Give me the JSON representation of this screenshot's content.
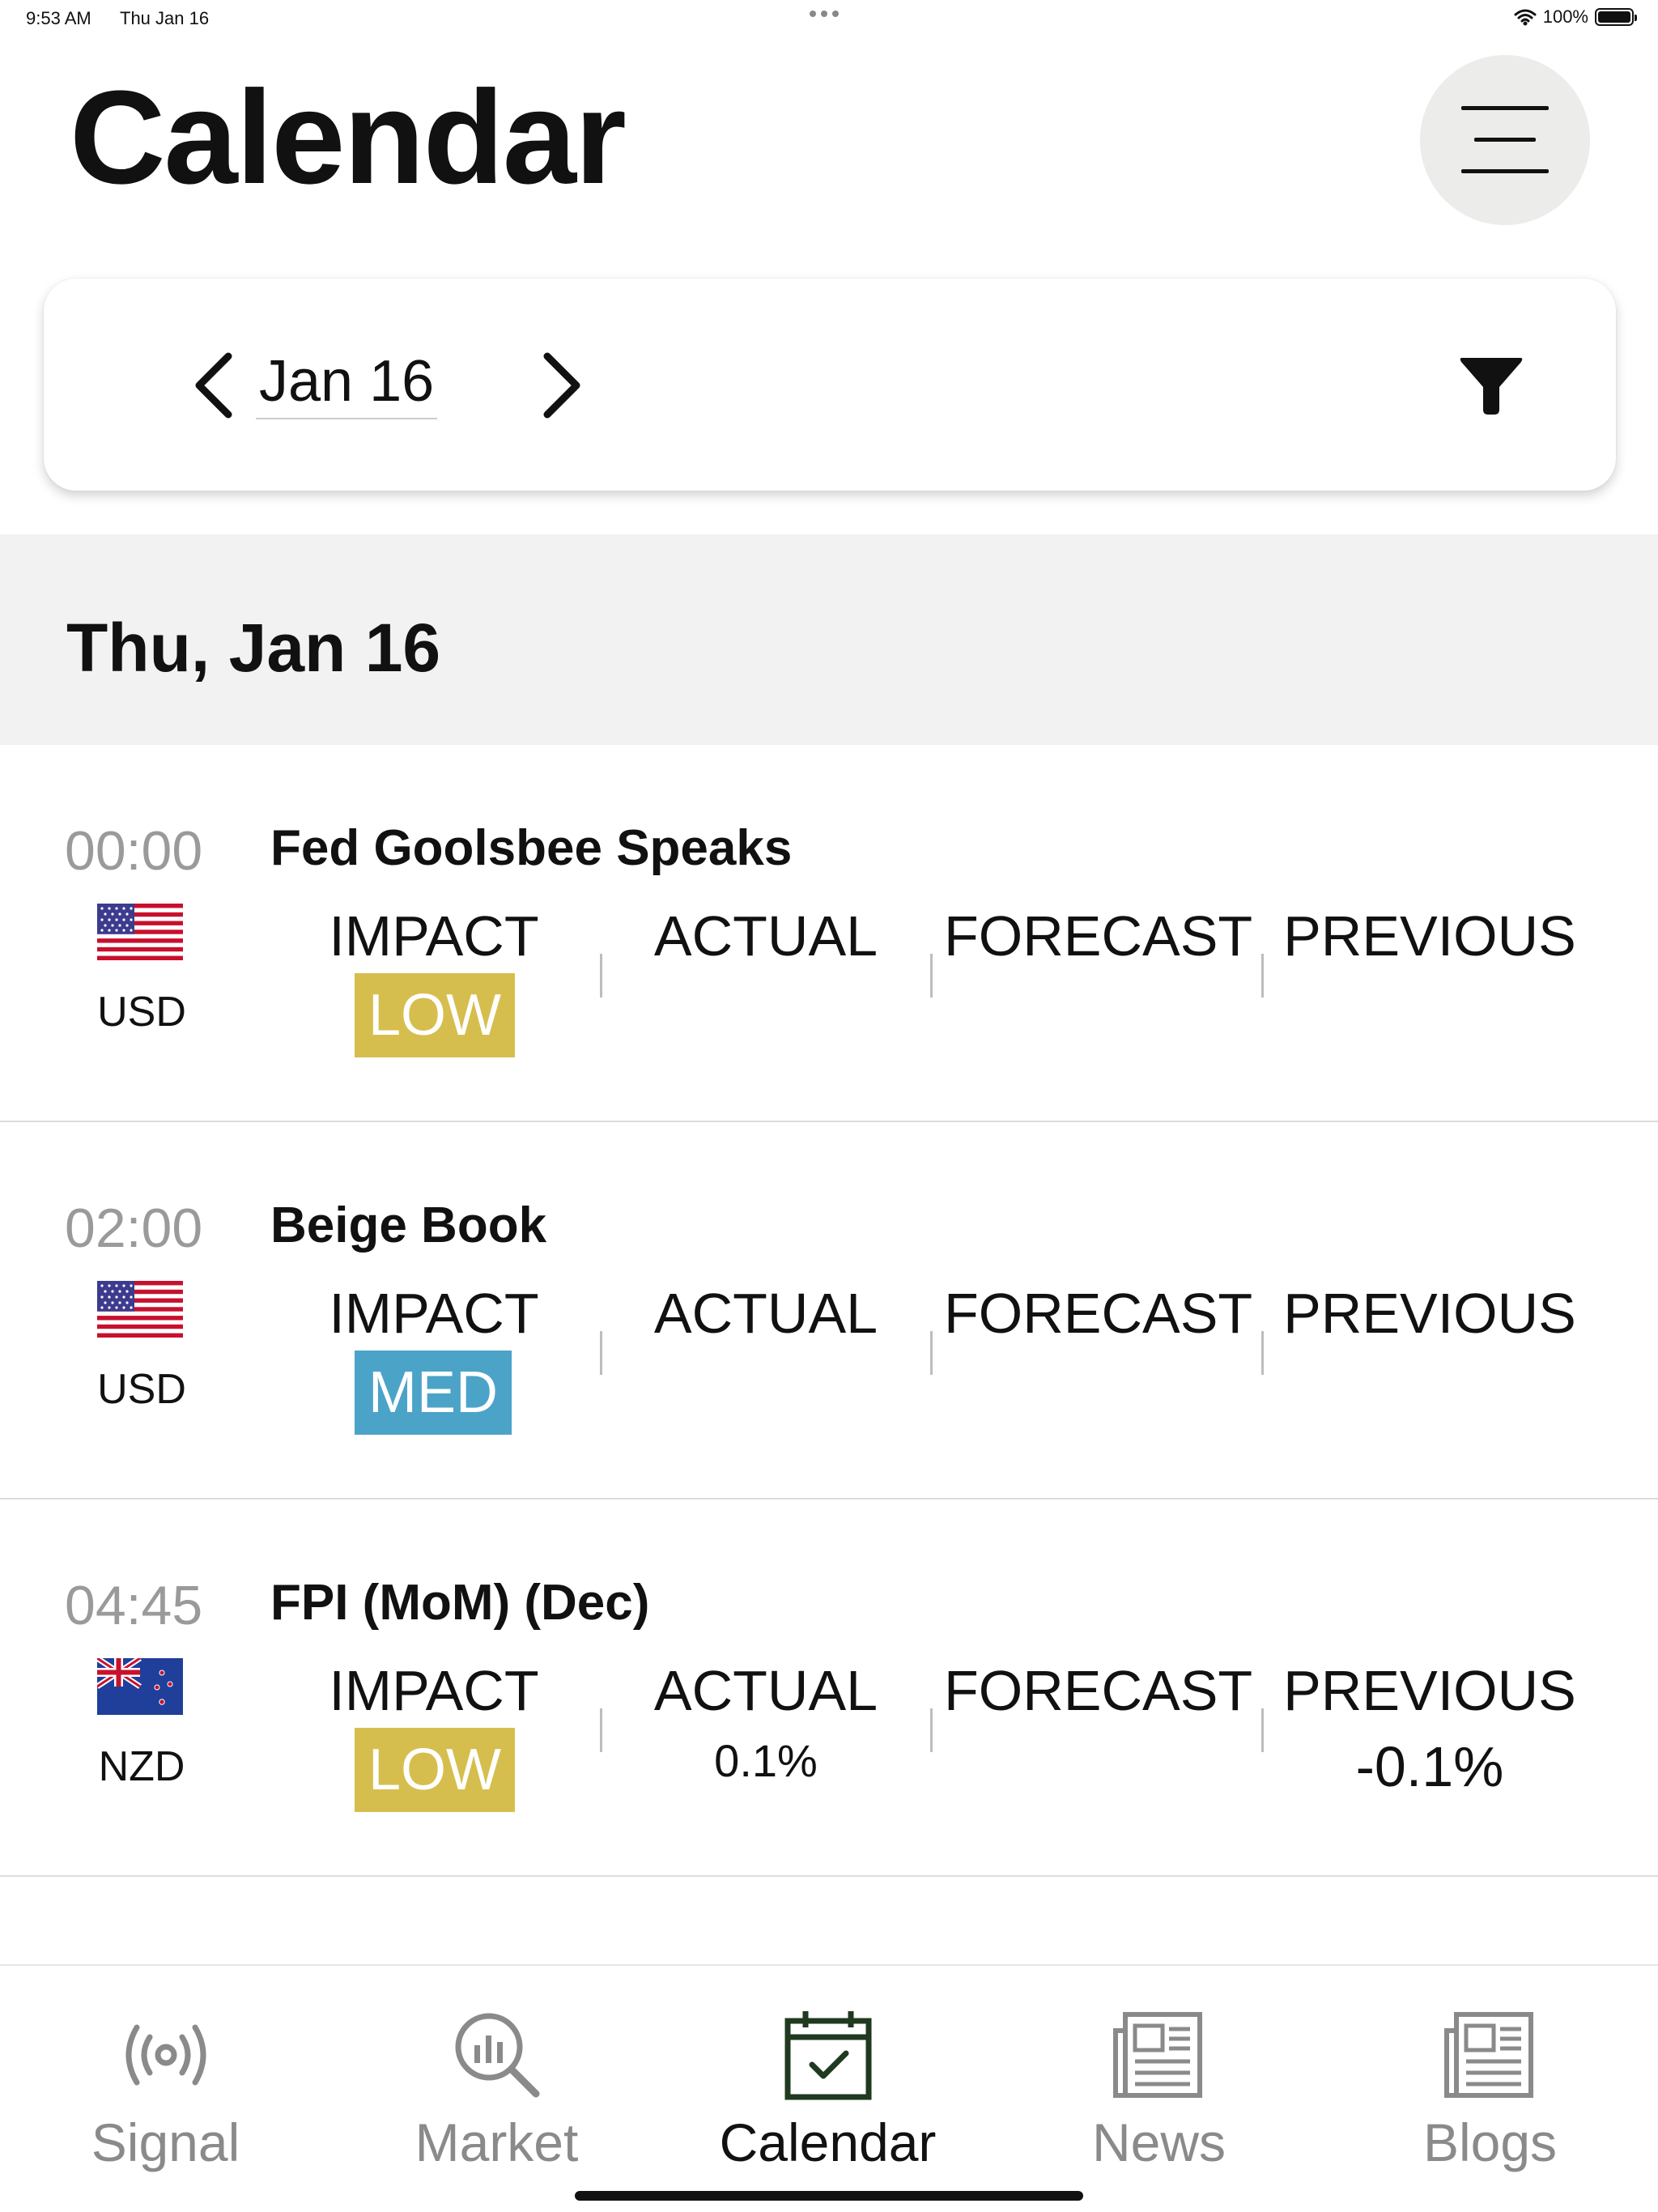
{
  "status_bar": {
    "time": "9:53 AM",
    "date": "Thu Jan 16",
    "battery": "100%"
  },
  "header": {
    "title": "Calendar",
    "menu_icon": "hamburger-menu-icon"
  },
  "date_selector": {
    "prev_icon": "chevron-left-icon",
    "date": "Jan 16",
    "next_icon": "chevron-right-icon",
    "filter_icon": "filter-funnel-icon"
  },
  "day": {
    "title": "Thu, Jan 16"
  },
  "columns": {
    "impact": "IMPACT",
    "actual": "ACTUAL",
    "forecast": "FORECAST",
    "previous": "PREVIOUS"
  },
  "events": [
    {
      "time": "00:00",
      "title": "Fed Goolsbee Speaks",
      "flag": "us-flag-icon",
      "currency": "USD",
      "impact": "LOW",
      "impact_color": "#d6be4e",
      "actual": "",
      "forecast": "",
      "previous": ""
    },
    {
      "time": "02:00",
      "title": "Beige Book",
      "flag": "us-flag-icon",
      "currency": "USD",
      "impact": "MED",
      "impact_color": "#4ca3c8",
      "actual": "",
      "forecast": "",
      "previous": ""
    },
    {
      "time": "04:45",
      "title": "FPI (MoM) (Dec)",
      "flag": "nz-flag-icon",
      "currency": "NZD",
      "impact": "LOW",
      "impact_color": "#d6be4e",
      "actual": "0.1%",
      "forecast": "",
      "previous": "-0.1%"
    }
  ],
  "tabs": [
    {
      "label": "Signal",
      "icon": "signal-broadcast-icon",
      "active": false
    },
    {
      "label": "Market",
      "icon": "market-search-chart-icon",
      "active": false
    },
    {
      "label": "Calendar",
      "icon": "calendar-check-icon",
      "active": true
    },
    {
      "label": "News",
      "icon": "newspaper-icon",
      "active": false
    },
    {
      "label": "Blogs",
      "icon": "newspaper-icon",
      "active": false
    }
  ],
  "colors": {
    "accent_active": "#1f3a1f",
    "inactive": "#8a8a8a",
    "low": "#d6be4e",
    "med": "#4ca3c8"
  }
}
